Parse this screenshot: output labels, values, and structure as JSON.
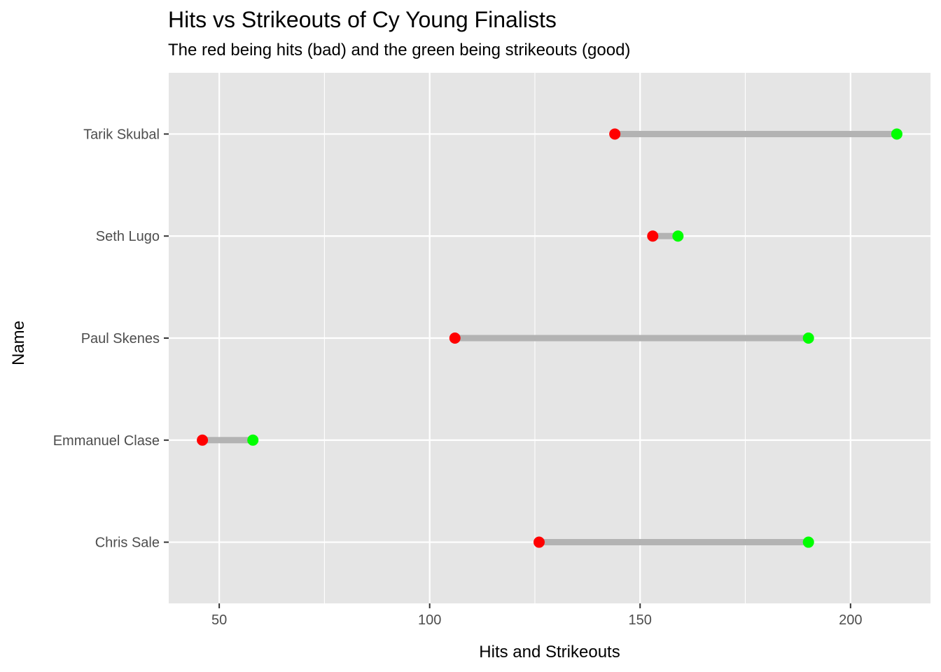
{
  "title": "Hits vs Strikeouts of Cy Young Finalists",
  "subtitle": "The red being hits (bad) and the green being strikeouts (good)",
  "colors": {
    "panel": "#e5e5e5",
    "grid": "#ffffff",
    "segment": "#b3b3b3",
    "hits": "#ff0000",
    "strikeouts": "#00ff00",
    "tick_text": "#4d4d4d",
    "tick": "#333333"
  },
  "chart_data": {
    "type": "dumbbell",
    "title": "Hits vs Strikeouts of Cy Young Finalists",
    "subtitle": "The red being hits (bad) and the green being strikeouts (good)",
    "xlabel": "Hits and Strikeouts",
    "ylabel": "Name",
    "xlim": [
      38,
      219
    ],
    "xticks": [
      50,
      100,
      150,
      200
    ],
    "xtick_labels": [
      "50",
      "100",
      "150",
      "200"
    ],
    "grid": true,
    "legend": "none",
    "categories": [
      "Chris Sale",
      "Emmanuel Clase",
      "Paul Skenes",
      "Seth Lugo",
      "Tarik Skubal"
    ],
    "series": [
      {
        "key": "hits",
        "color": "#ff0000",
        "values": [
          126,
          46,
          106,
          153,
          144
        ]
      },
      {
        "key": "strikeouts",
        "color": "#00ff00",
        "values": [
          190,
          58,
          190,
          159,
          211
        ]
      }
    ]
  }
}
